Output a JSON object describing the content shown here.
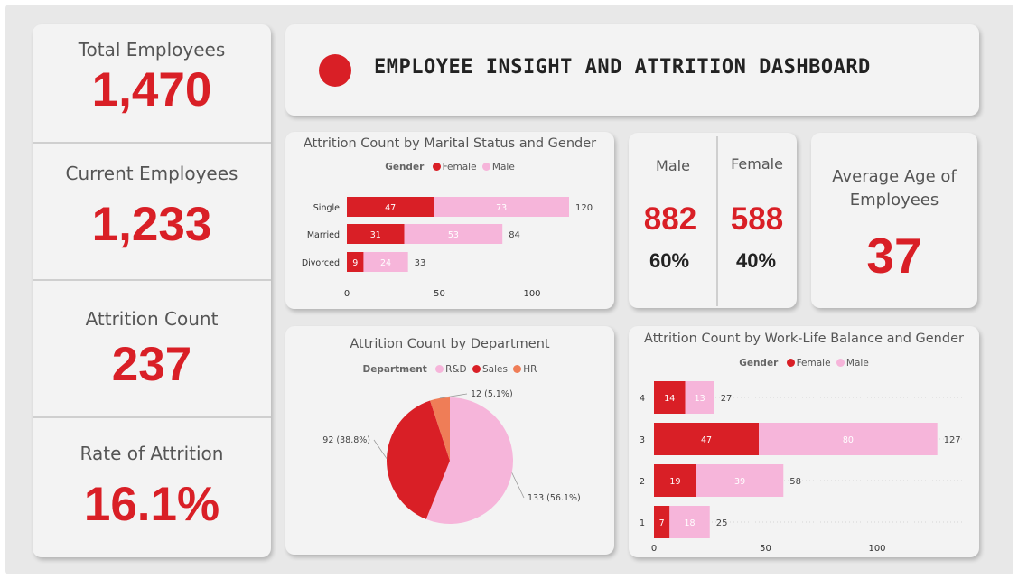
{
  "dashboard": {
    "title": "EMPLOYEE INSIGHT AND ATTRITION DASHBOARD",
    "colors": {
      "accent": "#d91f26",
      "female": "#d91f26",
      "male": "#f6b5da",
      "hr": "#ef7d57"
    }
  },
  "kpis": [
    {
      "label": "Total Employees",
      "value": "1,470"
    },
    {
      "label": "Current Employees",
      "value": "1,233"
    },
    {
      "label": "Attrition Count",
      "value": "237"
    },
    {
      "label": "Rate of Attrition",
      "value": "16.1%"
    }
  ],
  "gender_card": {
    "male": {
      "label": "Male",
      "count": "882",
      "pct": "60%"
    },
    "female": {
      "label": "Female",
      "count": "588",
      "pct": "40%"
    }
  },
  "avg_age": {
    "label": "Average Age of Employees",
    "value": "37"
  },
  "chart_data": [
    {
      "type": "bar",
      "orientation": "horizontal",
      "stacked": true,
      "title": "Attrition Count by Marital Status and Gender",
      "legend_title": "Gender",
      "legend_position": "top",
      "categories": [
        "Single",
        "Married",
        "Divorced"
      ],
      "series": [
        {
          "name": "Female",
          "values": [
            47,
            31,
            9
          ],
          "color": "#d91f26"
        },
        {
          "name": "Male",
          "values": [
            73,
            53,
            24
          ],
          "color": "#f6b5da"
        }
      ],
      "totals": [
        120,
        84,
        33
      ],
      "xticks": [
        0,
        50,
        100
      ],
      "xlim": [
        0,
        125
      ]
    },
    {
      "type": "pie",
      "title": "Attrition Count by Department",
      "legend_title": "Department",
      "legend_position": "top",
      "labels": [
        "R&D",
        "Sales",
        "HR"
      ],
      "values": [
        133,
        92,
        12
      ],
      "data_labels": [
        "133 (56.1%)",
        "92 (38.8%)",
        "12 (5.1%)"
      ],
      "colors": [
        "#f6b5da",
        "#d91f26",
        "#ef7d57"
      ]
    },
    {
      "type": "bar",
      "orientation": "horizontal",
      "stacked": true,
      "title": "Attrition Count by Work-Life Balance and Gender",
      "legend_title": "Gender",
      "legend_position": "top",
      "categories": [
        "4",
        "3",
        "2",
        "1"
      ],
      "series": [
        {
          "name": "Female",
          "values": [
            14,
            47,
            19,
            7
          ],
          "color": "#d91f26"
        },
        {
          "name": "Male",
          "values": [
            13,
            80,
            39,
            18
          ],
          "color": "#f6b5da"
        }
      ],
      "totals": [
        27,
        127,
        58,
        25
      ],
      "xticks": [
        0,
        50,
        100
      ],
      "xlim": [
        0,
        140
      ]
    }
  ]
}
